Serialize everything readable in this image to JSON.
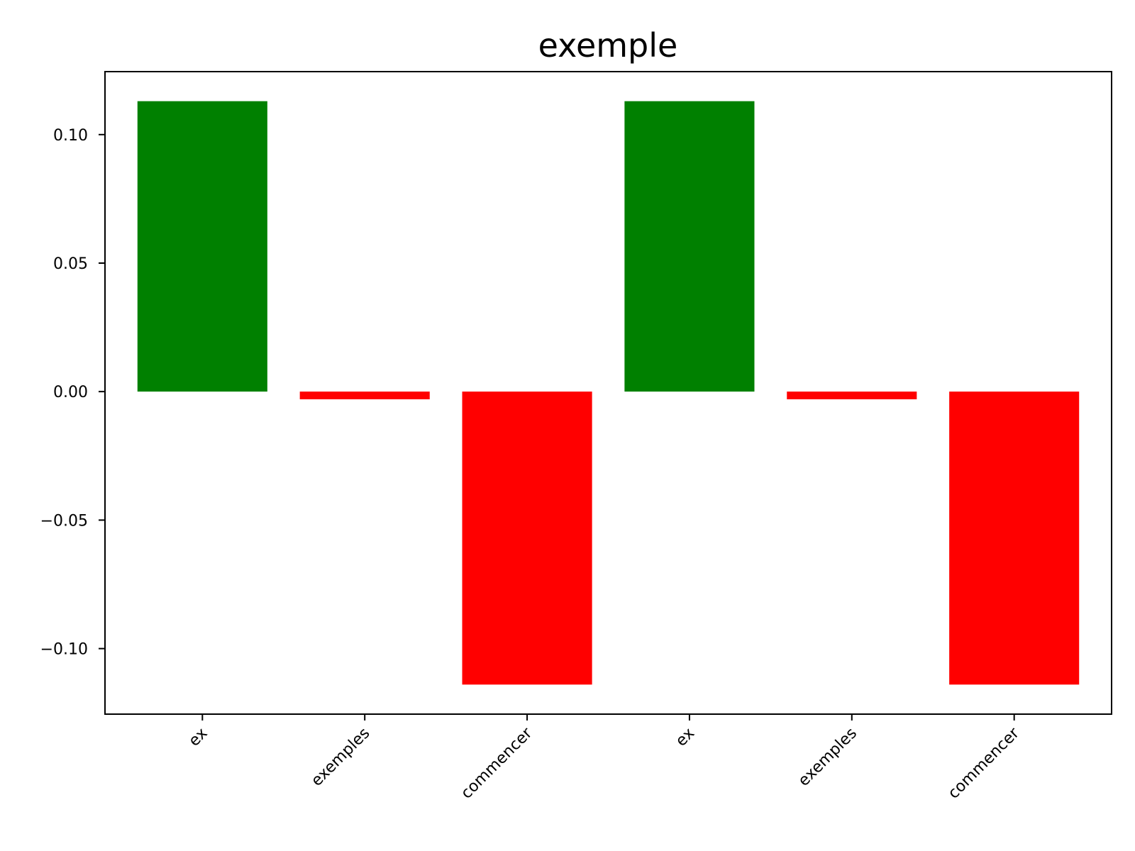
{
  "chart_data": {
    "type": "bar",
    "title": "exemple",
    "xlabel": "",
    "ylabel": "",
    "categories": [
      "ex",
      "exemples",
      "commencer",
      "ex",
      "exemples",
      "commencer"
    ],
    "values": [
      0.113,
      -0.003,
      -0.114,
      0.113,
      -0.003,
      -0.114
    ],
    "bar_colors": [
      "#008000",
      "#ff0000",
      "#ff0000",
      "#008000",
      "#ff0000",
      "#ff0000"
    ],
    "ylim": [
      -0.1255,
      0.1245
    ],
    "yticks": [
      {
        "value": 0.1,
        "label": "0.10"
      },
      {
        "value": 0.05,
        "label": "0.05"
      },
      {
        "value": 0.0,
        "label": "0.00"
      },
      {
        "value": -0.05,
        "label": "−0.05"
      },
      {
        "value": -0.1,
        "label": "−0.10"
      }
    ],
    "grid": false,
    "legend": "none"
  }
}
